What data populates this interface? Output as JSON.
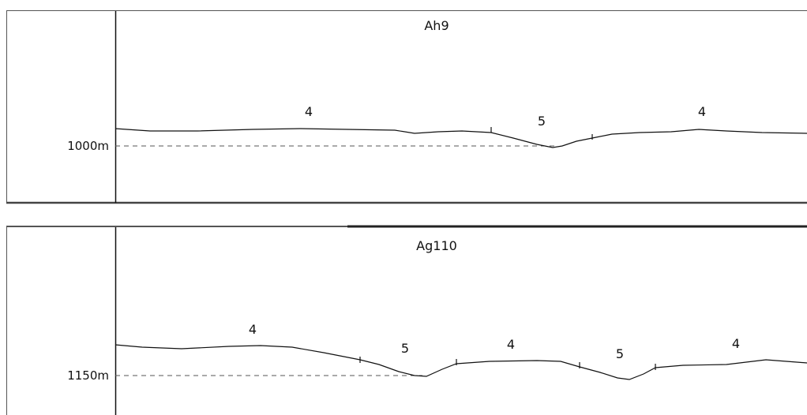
{
  "panels": [
    {
      "title": "Ah9",
      "reference": "1000m",
      "segments": [
        "4",
        "5",
        "4"
      ]
    },
    {
      "title": "Ag110",
      "reference": "1150m",
      "segments": [
        "4",
        "5",
        "4",
        "5",
        "4"
      ]
    }
  ],
  "colors": {
    "line": "#111111",
    "frame": "#444444",
    "dash": "#555555"
  }
}
